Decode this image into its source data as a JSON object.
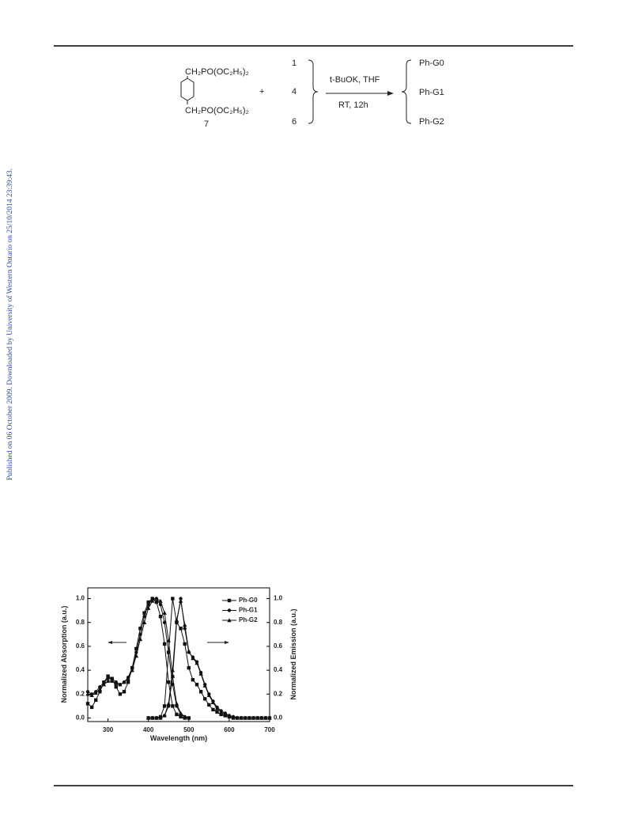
{
  "watermark": "Published on 06 October 2009. Downloaded by University of Western Ontario on 25/10/2014 23:39:43.",
  "scheme": {
    "reagent_top": "CH₂PO(OC₂H₅)₂",
    "reagent_bottom": "CH₂PO(OC₂H₅)₂",
    "reagent_number": "7",
    "plus": "+",
    "aldehydes": [
      "1",
      "4",
      "6"
    ],
    "conditions_top": "t-BuOK, THF",
    "conditions_bottom": "RT, 12h",
    "products": [
      "Ph-G0",
      "Ph-G1",
      "Ph-G2"
    ]
  },
  "chart_data": {
    "type": "line",
    "xlabel": "Wavelength (nm)",
    "ylabel": "Normalized Absorption (a.u.)",
    "y2label": "Normalized Emission (a.u.)",
    "xlim": [
      250,
      700
    ],
    "xticks": [
      300,
      400,
      500,
      600,
      700
    ],
    "ylim": [
      -0.03,
      1.09
    ],
    "yticks": [
      {
        "value": 0,
        "label": "0.0"
      },
      0.2,
      0.4,
      0.6,
      0.8,
      {
        "value": 1,
        "label": "1.0"
      }
    ],
    "y2lim": [
      -0.03,
      1.09
    ],
    "y2ticks": [
      {
        "value": 0,
        "label": "0.0"
      },
      0.2,
      0.4,
      0.6,
      0.8,
      {
        "value": 1,
        "label": "1.0"
      }
    ],
    "legend": "upper right",
    "x": [
      250,
      260,
      270,
      280,
      290,
      300,
      310,
      320,
      330,
      340,
      350,
      360,
      370,
      380,
      390,
      400,
      410,
      420,
      430,
      440,
      450,
      460,
      470,
      480,
      490,
      500
    ],
    "x_emission": [
      400,
      410,
      420,
      430,
      440,
      450,
      460,
      470,
      480,
      490,
      500,
      510,
      520,
      530,
      540,
      550,
      560,
      570,
      580,
      590,
      600,
      610,
      620,
      630,
      640,
      650,
      660,
      670,
      680,
      690,
      700
    ],
    "series": [
      {
        "name": "Ph-G0",
        "color": "#111111",
        "marker": "square",
        "values": [
          0.12,
          0.09,
          0.15,
          0.22,
          0.3,
          0.35,
          0.33,
          0.26,
          0.2,
          0.22,
          0.3,
          0.42,
          0.58,
          0.75,
          0.88,
          0.97,
          1.0,
          0.97,
          0.85,
          0.62,
          0.3,
          0.1,
          0.03,
          0.01,
          0,
          0
        ],
        "emission": [
          0,
          0,
          0,
          0.01,
          0.1,
          0.55,
          1.0,
          0.8,
          0.75,
          0.62,
          0.42,
          0.32,
          0.28,
          0.22,
          0.16,
          0.11,
          0.07,
          0.05,
          0.03,
          0.02,
          0.01,
          0,
          0,
          0,
          0,
          0,
          0,
          0,
          0,
          0,
          0
        ]
      },
      {
        "name": "Ph-G1",
        "color": "#111111",
        "marker": "circle",
        "values": [
          0.22,
          0.2,
          0.22,
          0.26,
          0.3,
          0.33,
          0.33,
          0.3,
          0.28,
          0.3,
          0.34,
          0.42,
          0.55,
          0.7,
          0.85,
          0.95,
          1.0,
          1.0,
          0.95,
          0.8,
          0.55,
          0.28,
          0.1,
          0.03,
          0.01,
          0
        ],
        "emission": [
          0,
          0,
          0,
          0,
          0.02,
          0.1,
          0.35,
          0.8,
          1.0,
          0.75,
          0.55,
          0.51,
          0.47,
          0.38,
          0.28,
          0.2,
          0.14,
          0.09,
          0.06,
          0.04,
          0.02,
          0.01,
          0,
          0,
          0,
          0,
          0,
          0,
          0,
          0,
          0
        ]
      },
      {
        "name": "Ph-G2",
        "color": "#111111",
        "marker": "triangle",
        "values": [
          0.2,
          0.19,
          0.21,
          0.24,
          0.28,
          0.31,
          0.31,
          0.29,
          0.28,
          0.3,
          0.33,
          0.4,
          0.52,
          0.66,
          0.8,
          0.92,
          0.98,
          1.0,
          0.98,
          0.88,
          0.65,
          0.35,
          0.12,
          0.04,
          0.01,
          0
        ],
        "emission": [
          0,
          0,
          0,
          0,
          0.02,
          0.12,
          0.4,
          0.82,
          0.98,
          0.78,
          0.56,
          0.5,
          0.46,
          0.37,
          0.27,
          0.19,
          0.13,
          0.08,
          0.05,
          0.03,
          0.02,
          0.01,
          0,
          0,
          0,
          0,
          0,
          0,
          0,
          0,
          0
        ]
      }
    ]
  }
}
